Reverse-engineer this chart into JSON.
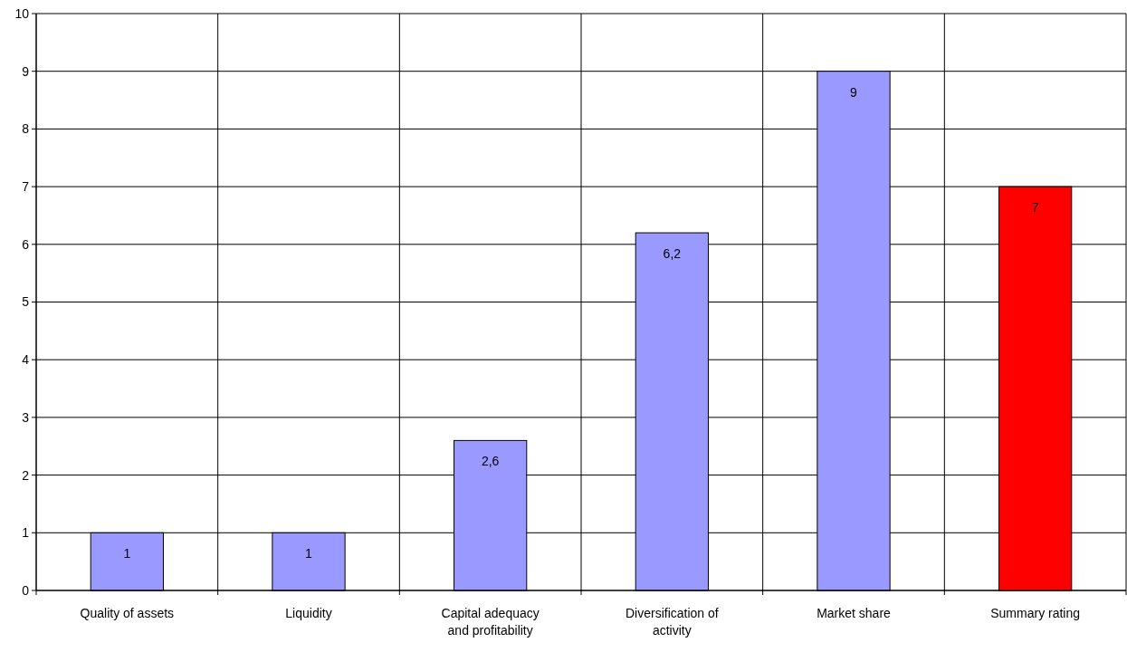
{
  "chart_data": {
    "type": "bar",
    "categories": [
      "Quality of assets",
      "Liquidity",
      "Capital adequacy and profitability",
      "Diversification of activity",
      "Market share",
      "Summary rating"
    ],
    "values": [
      1,
      1,
      2.6,
      6.2,
      9,
      7
    ],
    "colors": [
      "#9999ff",
      "#9999ff",
      "#9999ff",
      "#9999ff",
      "#9999ff",
      "#ff0000"
    ],
    "value_labels": [
      "1",
      "1",
      "2,6",
      "6,2",
      "9",
      "7"
    ],
    "ylim": [
      0,
      10
    ],
    "yticks": [
      0,
      1,
      2,
      3,
      4,
      5,
      6,
      7,
      8,
      9,
      10
    ],
    "grid": true
  }
}
